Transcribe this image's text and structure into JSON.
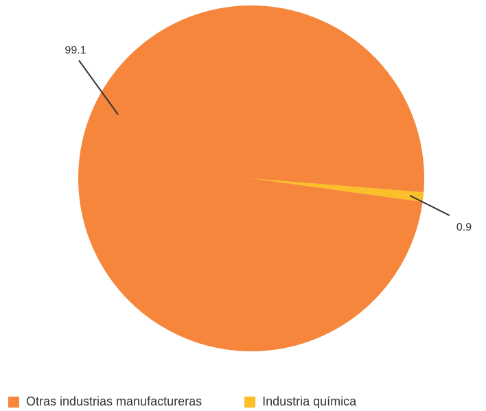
{
  "chart_data": {
    "type": "pie",
    "title": "",
    "categories": [
      "Otras industrias manufactureras",
      "Industria química"
    ],
    "values": [
      99.1,
      0.9
    ],
    "data_labels": [
      "99.1",
      "0.9"
    ],
    "colors": [
      "#f5863c",
      "#fbbf2a"
    ],
    "legend_position": "bottom-left"
  }
}
